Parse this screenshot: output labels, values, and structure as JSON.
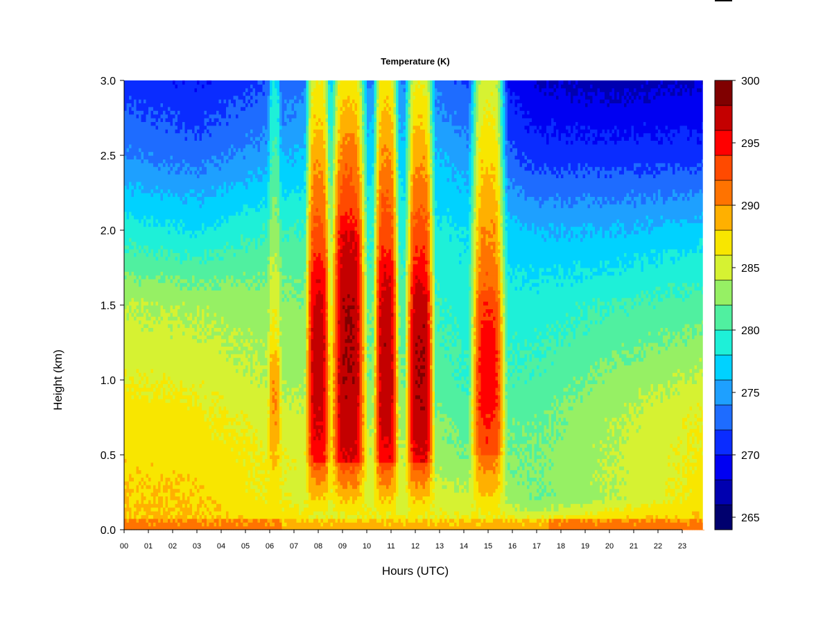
{
  "chart_data": {
    "type": "heatmap",
    "title": "Temperature (K)",
    "xlabel": "Hours (UTC)",
    "ylabel": "Height (km)",
    "xlim": [
      0,
      24
    ],
    "ylim": [
      0,
      3
    ],
    "x_ticks": [
      "00",
      "01",
      "02",
      "03",
      "04",
      "05",
      "06",
      "07",
      "08",
      "09",
      "10",
      "11",
      "12",
      "13",
      "14",
      "15",
      "16",
      "17",
      "18",
      "19",
      "20",
      "21",
      "22",
      "23"
    ],
    "y_ticks": [
      "0.0",
      "0.5",
      "1.0",
      "1.5",
      "2.0",
      "2.5",
      "3.0"
    ],
    "colorbar": {
      "range": [
        264,
        300
      ],
      "step": 2,
      "tick_values": [
        265,
        270,
        275,
        280,
        285,
        290,
        295,
        300
      ],
      "tick_labels": [
        "265",
        "270",
        "275",
        "280",
        "285",
        "290",
        "295",
        "300"
      ],
      "colors": [
        "#00006e",
        "#0000b0",
        "#0000f2",
        "#0a2cff",
        "#1e6cff",
        "#1ea0ff",
        "#00d2ff",
        "#1ef0d8",
        "#50f0a0",
        "#96f064",
        "#d6f232",
        "#f8e600",
        "#ffb000",
        "#ff7300",
        "#ff4a00",
        "#ff0000",
        "#c40000",
        "#800000"
      ]
    },
    "profile": {
      "comment_free_heights_km": [
        0,
        0.1,
        0.2,
        0.5,
        0.8,
        1.0,
        1.5,
        2.0,
        2.5,
        3.0
      ],
      "base": [
        {
          "hour": 0,
          "temps": [
            290,
            288,
            288,
            287.5,
            287,
            286,
            284,
            279,
            274,
            271
          ]
        },
        {
          "hour": 3,
          "temps": [
            290,
            288,
            288,
            287,
            286.5,
            285.5,
            283.5,
            278,
            273,
            270
          ]
        },
        {
          "hour": 6,
          "temps": [
            289,
            287,
            286,
            286,
            285,
            284,
            283,
            280,
            275,
            272
          ]
        },
        {
          "hour": 8,
          "temps": [
            287,
            286,
            285,
            285,
            284,
            283,
            282,
            280,
            277,
            274
          ]
        },
        {
          "hour": 12,
          "temps": [
            287,
            286,
            285,
            284,
            283,
            282,
            281,
            279,
            277,
            274
          ]
        },
        {
          "hour": 14,
          "temps": [
            287,
            286,
            285,
            282,
            281,
            280,
            279,
            278,
            275,
            272
          ]
        },
        {
          "hour": 17,
          "temps": [
            289,
            285,
            282,
            282,
            281.5,
            280.5,
            279,
            276,
            271,
            268
          ]
        },
        {
          "hour": 20,
          "temps": [
            290,
            287,
            284,
            284,
            283.5,
            282.5,
            280,
            276,
            271,
            267
          ]
        },
        {
          "hour": 24,
          "temps": [
            290,
            288,
            287,
            286.5,
            286,
            284.5,
            281,
            277,
            271,
            268
          ]
        }
      ],
      "warm_bands": [
        {
          "center_hour": 6.2,
          "half_width_hours": 0.18,
          "peak_temp": 290,
          "core_km": [
            0.5,
            1.2
          ],
          "top_temp": 278
        },
        {
          "center_hour": 8.0,
          "half_width_hours": 0.35,
          "peak_temp": 297,
          "core_km": [
            0.45,
            1.8
          ],
          "top_temp": 286
        },
        {
          "center_hour": 9.25,
          "half_width_hours": 0.5,
          "peak_temp": 298,
          "core_km": [
            0.45,
            2.0
          ],
          "top_temp": 287
        },
        {
          "center_hour": 10.8,
          "half_width_hours": 0.35,
          "peak_temp": 297.5,
          "core_km": [
            0.45,
            1.8
          ],
          "top_temp": 287
        },
        {
          "center_hour": 12.2,
          "half_width_hours": 0.4,
          "peak_temp": 298,
          "core_km": [
            0.45,
            1.7
          ],
          "top_temp": 286
        },
        {
          "center_hour": 15.0,
          "half_width_hours": 0.5,
          "peak_temp": 295,
          "core_km": [
            0.5,
            1.6
          ],
          "top_temp": 285
        }
      ]
    }
  }
}
